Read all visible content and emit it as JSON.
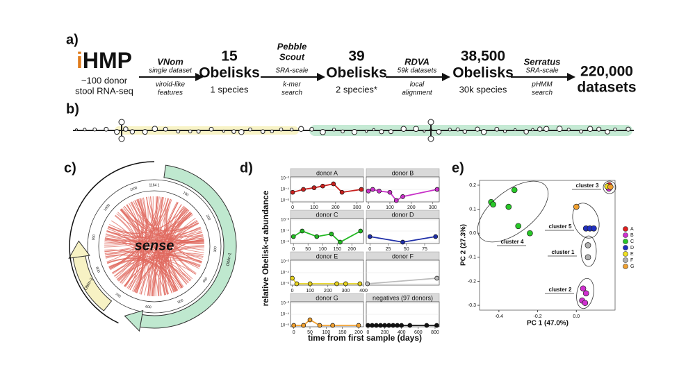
{
  "panel_labels": [
    "a)",
    "b)",
    "c)",
    "d)",
    "e)"
  ],
  "pipeline": {
    "source": {
      "brand": [
        "i",
        "HMP"
      ],
      "caption": [
        "~100 donor",
        "stool RNA-seq"
      ]
    },
    "steps": [
      {
        "tool": [
          "VNom"
        ],
        "above": "single dataset",
        "below": [
          "viroid-like",
          "features"
        ]
      },
      {
        "tool": [
          "Pebble",
          "Scout"
        ],
        "above": "SRA-scale",
        "below": [
          "k-mer",
          "search"
        ]
      },
      {
        "tool": [
          "RDVA"
        ],
        "above": "59k datasets",
        "below": [
          "local",
          "alignment"
        ]
      },
      {
        "tool": [
          "Serratus"
        ],
        "above": "SRA-scale",
        "below": [
          "pHMM",
          "search"
        ]
      }
    ],
    "stages": [
      {
        "count": "15",
        "unit": "Obelisks",
        "sub": "1 species"
      },
      {
        "count": "39",
        "unit": "Obelisks",
        "sub": "2 species*"
      },
      {
        "count": "38,500",
        "unit": "Obelisks",
        "sub": "30k species"
      },
      {
        "count": "220,000",
        "unit": "datasets"
      }
    ]
  },
  "circos": {
    "center_label": "sense",
    "gene_labels": [
      "Oblin-1",
      "Oblin-2"
    ],
    "origin_label": "1164 1",
    "ticks": [
      "100",
      "200",
      "300",
      "400",
      "500",
      "600",
      "700",
      "800",
      "900",
      "1000",
      "1100"
    ]
  },
  "chart_data": [
    {
      "type": "facet-line",
      "ylabel": "relative Obelisk-α abundance",
      "xlabel": "time from first sample (days)",
      "log_y": true,
      "ylim": [
        1e-06,
        0.01
      ],
      "yticks": [
        {
          "value": 0.01,
          "label": "10⁻²"
        },
        {
          "value": 0.0001,
          "label": "10⁻⁴"
        },
        {
          "value": 1e-06,
          "label": "10⁻⁶"
        }
      ],
      "facets": [
        {
          "name": "donor A",
          "color": "#c8201e",
          "xlim": [
            -10,
            330
          ],
          "xticks": [
            0,
            100,
            200,
            300
          ],
          "x": [
            0,
            50,
            100,
            140,
            190,
            230,
            320
          ],
          "values": [
            3e-05,
            0.0001,
            0.0002,
            0.0004,
            0.001,
            3e-05,
            0.0001
          ]
        },
        {
          "name": "donor B",
          "color": "#c832c8",
          "xlim": [
            -10,
            330
          ],
          "xticks": [
            0,
            100,
            200,
            300
          ],
          "x": [
            0,
            20,
            50,
            100,
            130,
            160,
            320
          ],
          "values": [
            5e-05,
            0.0001,
            5e-05,
            3e-05,
            1e-06,
            5e-06,
            0.0001
          ]
        },
        {
          "name": "donor C",
          "color": "#22b922",
          "xlim": [
            -10,
            240
          ],
          "xticks": [
            0,
            50,
            100,
            150,
            200
          ],
          "x": [
            0,
            30,
            80,
            130,
            160,
            230
          ],
          "values": [
            1e-05,
            0.0001,
            1e-05,
            3e-05,
            1e-06,
            0.0001
          ]
        },
        {
          "name": "donor D",
          "color": "#1f2fa8",
          "xlim": [
            -5,
            95
          ],
          "xticks": [
            0,
            25,
            50,
            75
          ],
          "x": [
            0,
            45,
            90
          ],
          "values": [
            1e-05,
            1e-06,
            1e-05
          ]
        },
        {
          "name": "donor E",
          "color": "#e6d21e",
          "xlim": [
            -10,
            400
          ],
          "xticks": [
            0,
            100,
            200,
            300,
            400
          ],
          "x": [
            0,
            25,
            100,
            250,
            300,
            380
          ],
          "values": [
            1e-05,
            1e-06,
            1e-06,
            1e-06,
            1e-06,
            1e-06
          ]
        },
        {
          "name": "donor F",
          "color": "#bbbbbb",
          "xlim": [
            -10,
            620
          ],
          "xticks": [],
          "x": [
            0,
            600
          ],
          "values": [
            1e-06,
            1e-05
          ]
        },
        {
          "name": "donor G",
          "color": "#f0a030",
          "xlim": [
            -10,
            215
          ],
          "xticks": [
            0,
            50,
            100,
            150,
            200
          ],
          "x": [
            0,
            30,
            50,
            80,
            120,
            200
          ],
          "values": [
            1e-06,
            1e-06,
            1e-05,
            1e-06,
            1e-06,
            1e-06
          ]
        },
        {
          "name": "negatives (97 donors)",
          "color": "#111111",
          "xlim": [
            -20,
            850
          ],
          "xticks": [
            0,
            200,
            400,
            600,
            800
          ],
          "x": [
            0,
            50,
            100,
            150,
            200,
            250,
            300,
            350,
            400,
            500,
            700,
            820
          ],
          "values": [
            1e-06,
            1e-06,
            1e-06,
            1e-06,
            1e-06,
            1e-06,
            1e-06,
            1e-06,
            1e-06,
            1e-06,
            1e-06,
            1e-06
          ]
        }
      ]
    },
    {
      "type": "scatter",
      "xlabel": "PC 1 (47.0%)",
      "ylabel": "PC 2 (27.3%)",
      "xlim": [
        -0.5,
        0.2
      ],
      "ylim": [
        -0.32,
        0.22
      ],
      "xticks": [
        -0.4,
        -0.2,
        {
          "value": 0,
          "label": "0.0"
        }
      ],
      "yticks": [
        0.2,
        0.1,
        {
          "value": 0,
          "label": "0.0"
        },
        -0.1,
        -0.2,
        -0.3
      ],
      "annotations": [
        "cluster 3",
        "cluster 5",
        "cluster 1",
        "cluster 4",
        "cluster 2"
      ],
      "series": [
        {
          "name": "A",
          "color": "#e02020",
          "x": [
            0.17
          ],
          "values": [
            0.2
          ]
        },
        {
          "name": "B",
          "color": "#d030d0",
          "x": [
            0.035,
            0.05,
            0.03,
            0.045,
            0.168
          ],
          "values": [
            -0.23,
            -0.25,
            -0.28,
            -0.29,
            0.186
          ]
        },
        {
          "name": "C",
          "color": "#28c828",
          "x": [
            -0.32,
            -0.44,
            -0.43,
            -0.35,
            -0.3,
            -0.24
          ],
          "values": [
            0.18,
            0.13,
            0.12,
            0.11,
            0.03,
            0.0
          ]
        },
        {
          "name": "D",
          "color": "#2030c0",
          "x": [
            0.05,
            0.07,
            0.09
          ],
          "values": [
            0.02,
            0.02,
            0.02
          ]
        },
        {
          "name": "E",
          "color": "#f0e020",
          "x": [
            0.16
          ],
          "values": [
            0.195
          ]
        },
        {
          "name": "F",
          "color": "#b0b0b0",
          "x": [
            0.06,
            0.06
          ],
          "values": [
            -0.05,
            -0.1
          ]
        },
        {
          "name": "G",
          "color": "#f0a030",
          "x": [
            0.0,
            0.176
          ],
          "values": [
            0.11,
            0.193
          ]
        }
      ]
    }
  ]
}
